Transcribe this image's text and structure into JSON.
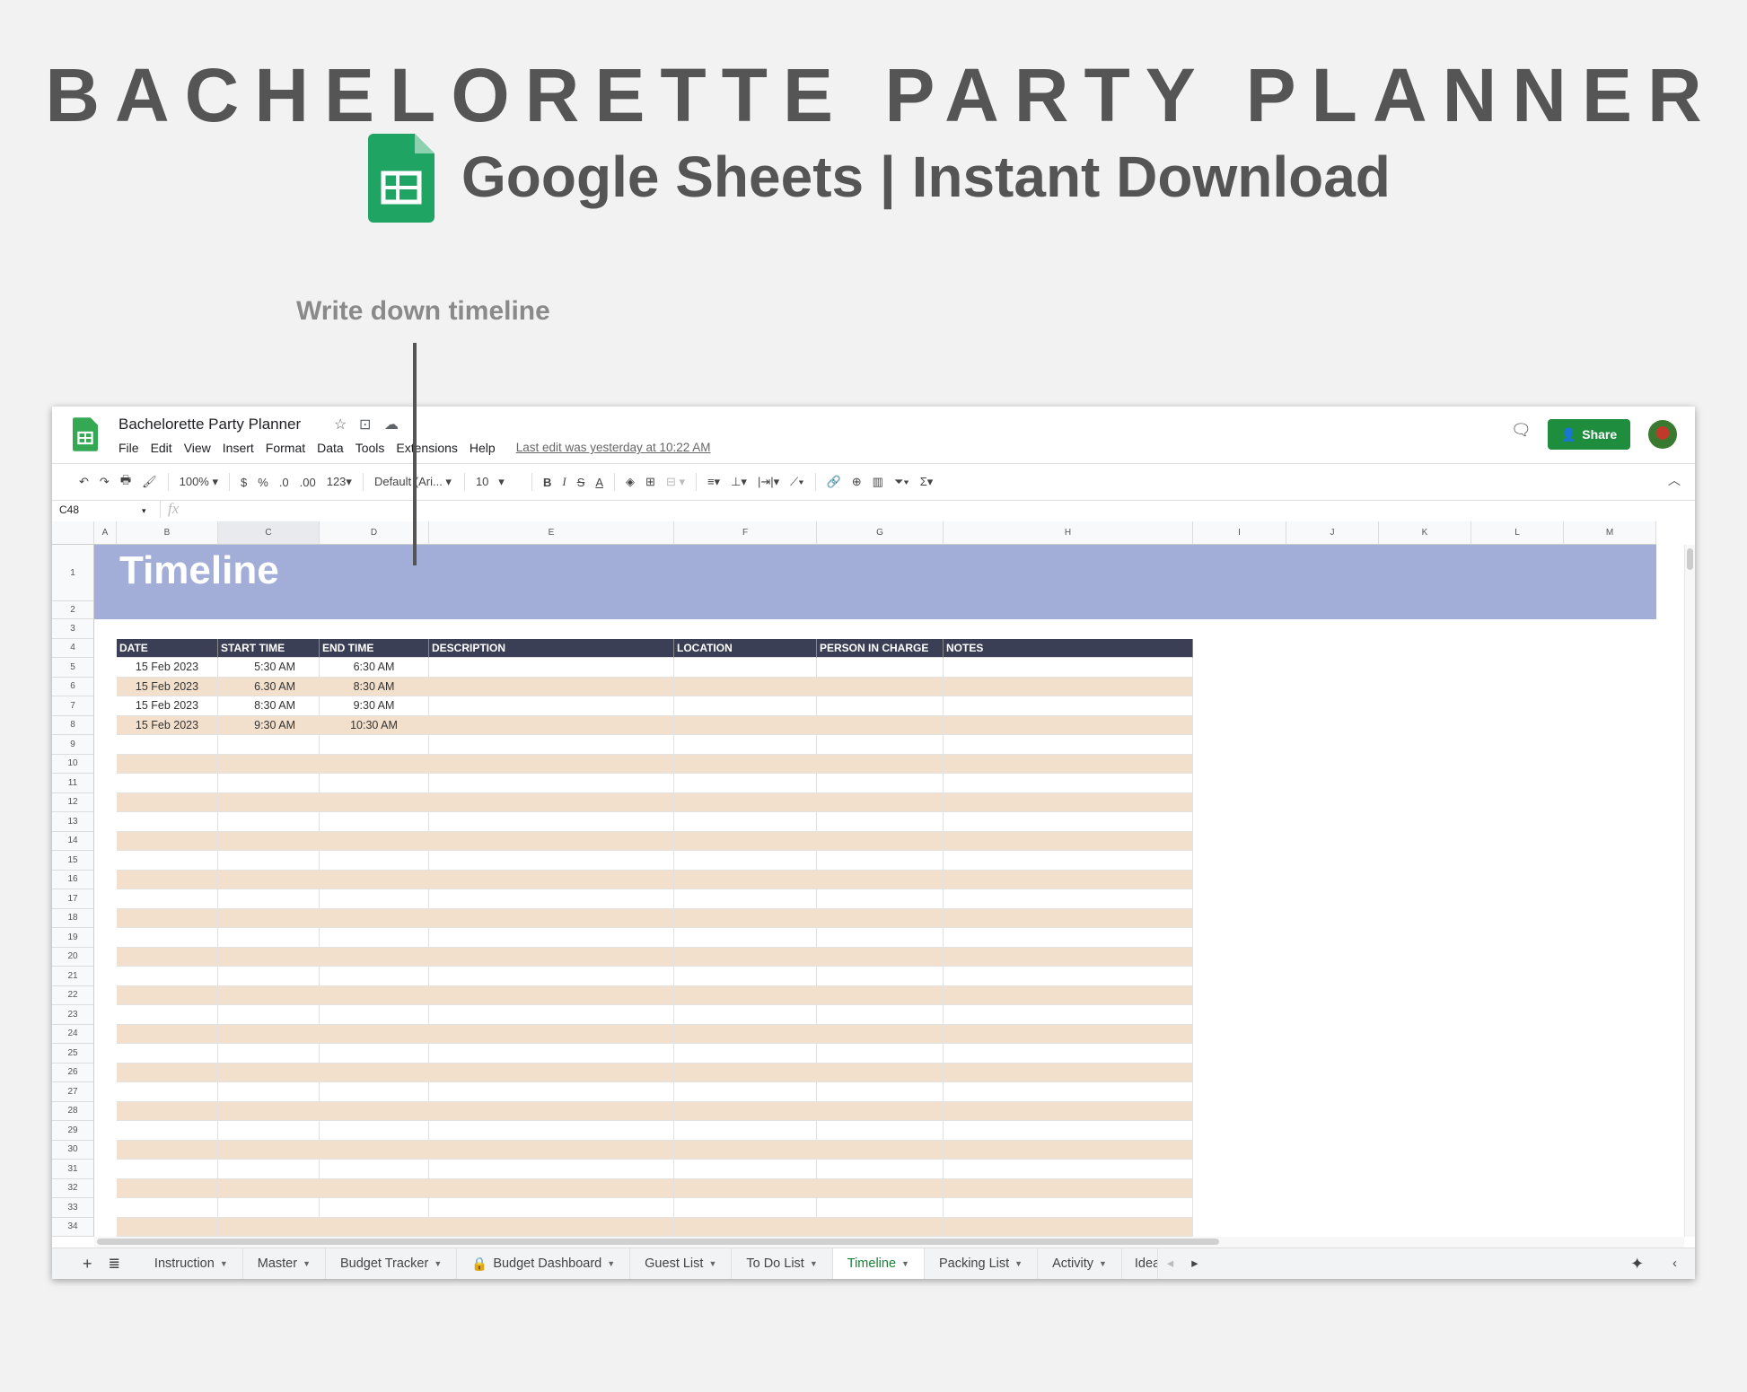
{
  "hero": {
    "title": "BACHELORETTE PARTY PLANNER",
    "subtitle": "Google Sheets | Instant Download",
    "annotation": "Write down timeline"
  },
  "app": {
    "doc_title": "Bachelorette Party Planner",
    "menu": [
      "File",
      "Edit",
      "View",
      "Insert",
      "Format",
      "Data",
      "Tools",
      "Extensions",
      "Help"
    ],
    "last_edit": "Last edit was yesterday at 10:22 AM",
    "share_label": "Share",
    "zoom": "100%",
    "currency": "$",
    "percent": "%",
    "dec_less": ".0",
    "dec_more": ".00",
    "format_more": "123",
    "font": "Default (Ari...",
    "font_size": "10",
    "name_box": "C48",
    "fx": "fx"
  },
  "colors": {
    "accent": "#1e8e3e",
    "band": "#a2aed8",
    "header": "#3b3f55",
    "stripe": "#f3e0cc"
  },
  "grid": {
    "columns": [
      "A",
      "B",
      "C",
      "D",
      "E",
      "F",
      "G",
      "H",
      "I",
      "J",
      "K",
      "L",
      "M"
    ],
    "row_count": 34,
    "sheet_title": "Timeline",
    "table_headers": [
      "DATE",
      "START TIME",
      "END TIME",
      "DESCRIPTION",
      "LOCATION",
      "PERSON IN CHARGE",
      "NOTES"
    ],
    "rows": [
      [
        "15 Feb 2023",
        "5:30 AM",
        "6:30 AM",
        "",
        "",
        "",
        ""
      ],
      [
        "15 Feb 2023",
        "6.30 AM",
        "8:30 AM",
        "",
        "",
        "",
        ""
      ],
      [
        "15 Feb 2023",
        "8:30 AM",
        "9:30 AM",
        "",
        "",
        "",
        ""
      ],
      [
        "15 Feb 2023",
        "9:30 AM",
        "10:30 AM",
        "",
        "",
        "",
        ""
      ]
    ]
  },
  "tabs": [
    {
      "label": "Instruction"
    },
    {
      "label": "Master"
    },
    {
      "label": "Budget Tracker"
    },
    {
      "label": "Budget Dashboard",
      "locked": true
    },
    {
      "label": "Guest List"
    },
    {
      "label": "To Do List"
    },
    {
      "label": "Timeline",
      "active": true
    },
    {
      "label": "Packing List"
    },
    {
      "label": "Activity"
    },
    {
      "label": "Idea"
    }
  ]
}
